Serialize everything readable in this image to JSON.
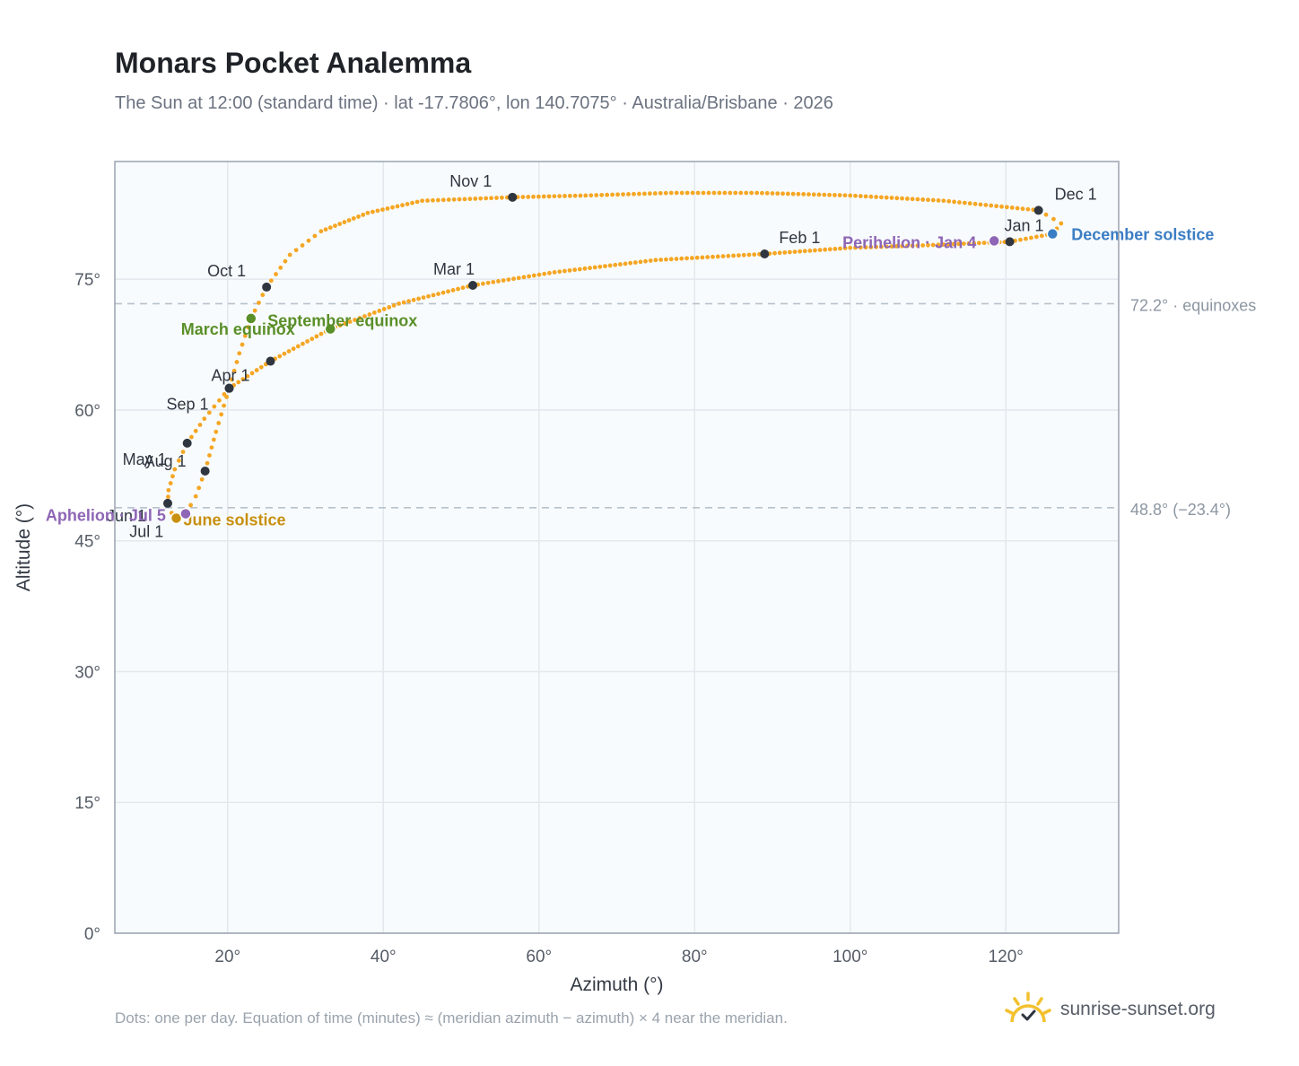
{
  "header": {
    "title": "Monars Pocket Analemma",
    "subtitle": "The Sun at 12:00 (standard time) · lat -17.7806°, lon 140.7075° · Australia/Brisbane · 2026"
  },
  "footer": {
    "note": "Dots: one per day. Equation of time (minutes) ≈ (meridian azimuth − azimuth) × 4 near the meridian.",
    "brand": "sunrise-sunset.org",
    "brand_icon": "sun-logo-icon"
  },
  "colors": {
    "path": "#f5a623",
    "month_marker": "#2f3640",
    "equinox": "#5a8f29",
    "june_solstice": "#c8900f",
    "december_solstice": "#3b7dc4",
    "apsis": "#8e66b5",
    "reference_line": "#b8c2cc",
    "plot_bg": "#f8fbfd",
    "grid": "#e2e8ee"
  },
  "chart_data": {
    "type": "scatter",
    "title": "Monars Pocket Analemma",
    "xlabel": "Azimuth (°)",
    "ylabel": "Altitude (°)",
    "xlim": [
      5.5,
      134.5
    ],
    "ylim": [
      0,
      88.5
    ],
    "x_ticks": [
      20,
      40,
      60,
      80,
      100,
      120
    ],
    "y_ticks": [
      0,
      15,
      30,
      45,
      60,
      75
    ],
    "x_tick_labels": [
      "20°",
      "40°",
      "60°",
      "80°",
      "100°",
      "120°"
    ],
    "y_tick_labels": [
      "0°",
      "15°",
      "30°",
      "45°",
      "60°",
      "75°"
    ],
    "grid": true,
    "reference_lines": [
      {
        "y": 72.2,
        "label": "72.2° · equinoxes"
      },
      {
        "y": 48.8,
        "label": "48.8° (−23.4°)"
      }
    ],
    "path_points": [
      [
        126.0,
        80.2
      ],
      [
        120.5,
        79.3
      ],
      [
        110.0,
        78.9
      ],
      [
        100.0,
        78.6
      ],
      [
        89.0,
        77.9
      ],
      [
        75.0,
        77.2
      ],
      [
        62.0,
        75.8
      ],
      [
        51.5,
        74.3
      ],
      [
        42.0,
        72.2
      ],
      [
        33.2,
        69.3
      ],
      [
        25.5,
        65.6
      ],
      [
        20.2,
        62.5
      ],
      [
        17.0,
        59.0
      ],
      [
        14.8,
        56.2
      ],
      [
        13.2,
        53.2
      ],
      [
        12.4,
        50.8
      ],
      [
        12.3,
        49.3
      ],
      [
        12.8,
        48.2
      ],
      [
        13.6,
        47.7
      ],
      [
        14.6,
        48.1
      ],
      [
        15.9,
        50.1
      ],
      [
        17.1,
        53.0
      ],
      [
        18.5,
        57.5
      ],
      [
        20.2,
        62.5
      ],
      [
        21.5,
        66.5
      ],
      [
        23.0,
        70.5
      ],
      [
        25.0,
        74.1
      ],
      [
        28.0,
        77.8
      ],
      [
        32.0,
        80.5
      ],
      [
        38.0,
        82.6
      ],
      [
        45.0,
        84.0
      ],
      [
        56.6,
        84.4
      ],
      [
        66.0,
        84.6
      ],
      [
        77.0,
        84.9
      ],
      [
        88.0,
        84.9
      ],
      [
        100.0,
        84.6
      ],
      [
        112.0,
        84.0
      ],
      [
        124.2,
        82.9
      ],
      [
        127.1,
        81.4
      ],
      [
        126.0,
        80.2
      ]
    ],
    "month_markers": [
      {
        "label": "Jan 1",
        "x": 120.5,
        "y": 79.3
      },
      {
        "label": "Feb 1",
        "x": 89.0,
        "y": 77.9
      },
      {
        "label": "Mar 1",
        "x": 51.5,
        "y": 74.3
      },
      {
        "label": "Apr 1",
        "x": 20.2,
        "y": 62.5
      },
      {
        "label": "May 1",
        "x": 14.8,
        "y": 56.2
      },
      {
        "label": "Jun 1",
        "x": 12.3,
        "y": 49.3
      },
      {
        "label": "Jul 1",
        "x": 13.6,
        "y": 47.7
      },
      {
        "label": "Aug 1",
        "x": 17.1,
        "y": 53.0
      },
      {
        "label": "Sep 1",
        "x": 20.2,
        "y": 62.5
      },
      {
        "label": "Oct 1",
        "x": 25.0,
        "y": 74.1
      },
      {
        "label": "Nov 1",
        "x": 56.6,
        "y": 84.4
      },
      {
        "label": "Dec 1",
        "x": 124.2,
        "y": 82.9
      }
    ],
    "unlabeled_markers": [
      {
        "x": 25.5,
        "y": 65.6
      }
    ],
    "events": [
      {
        "label": "March equinox",
        "x": 23.0,
        "y": 70.5,
        "color": "#5a8f29"
      },
      {
        "label": "September equinox",
        "x": 33.2,
        "y": 69.3,
        "color": "#5a8f29"
      },
      {
        "label": "June solstice",
        "x": 13.4,
        "y": 47.6,
        "color": "#c8900f"
      },
      {
        "label": "December solstice",
        "x": 126.0,
        "y": 80.2,
        "color": "#3b7dc4"
      },
      {
        "label": "Aphelion · Jul 5",
        "x": 14.6,
        "y": 48.1,
        "color": "#8e66b5"
      },
      {
        "label": "Perihelion · Jan 4",
        "x": 118.5,
        "y": 79.4,
        "color": "#8e66b5"
      }
    ]
  }
}
